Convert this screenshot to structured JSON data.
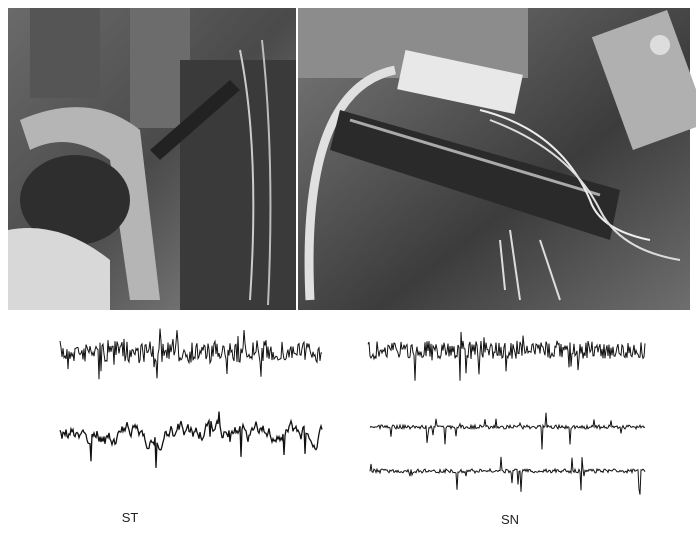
{
  "panels": {
    "left_label": "ST",
    "right_label": "SN"
  }
}
